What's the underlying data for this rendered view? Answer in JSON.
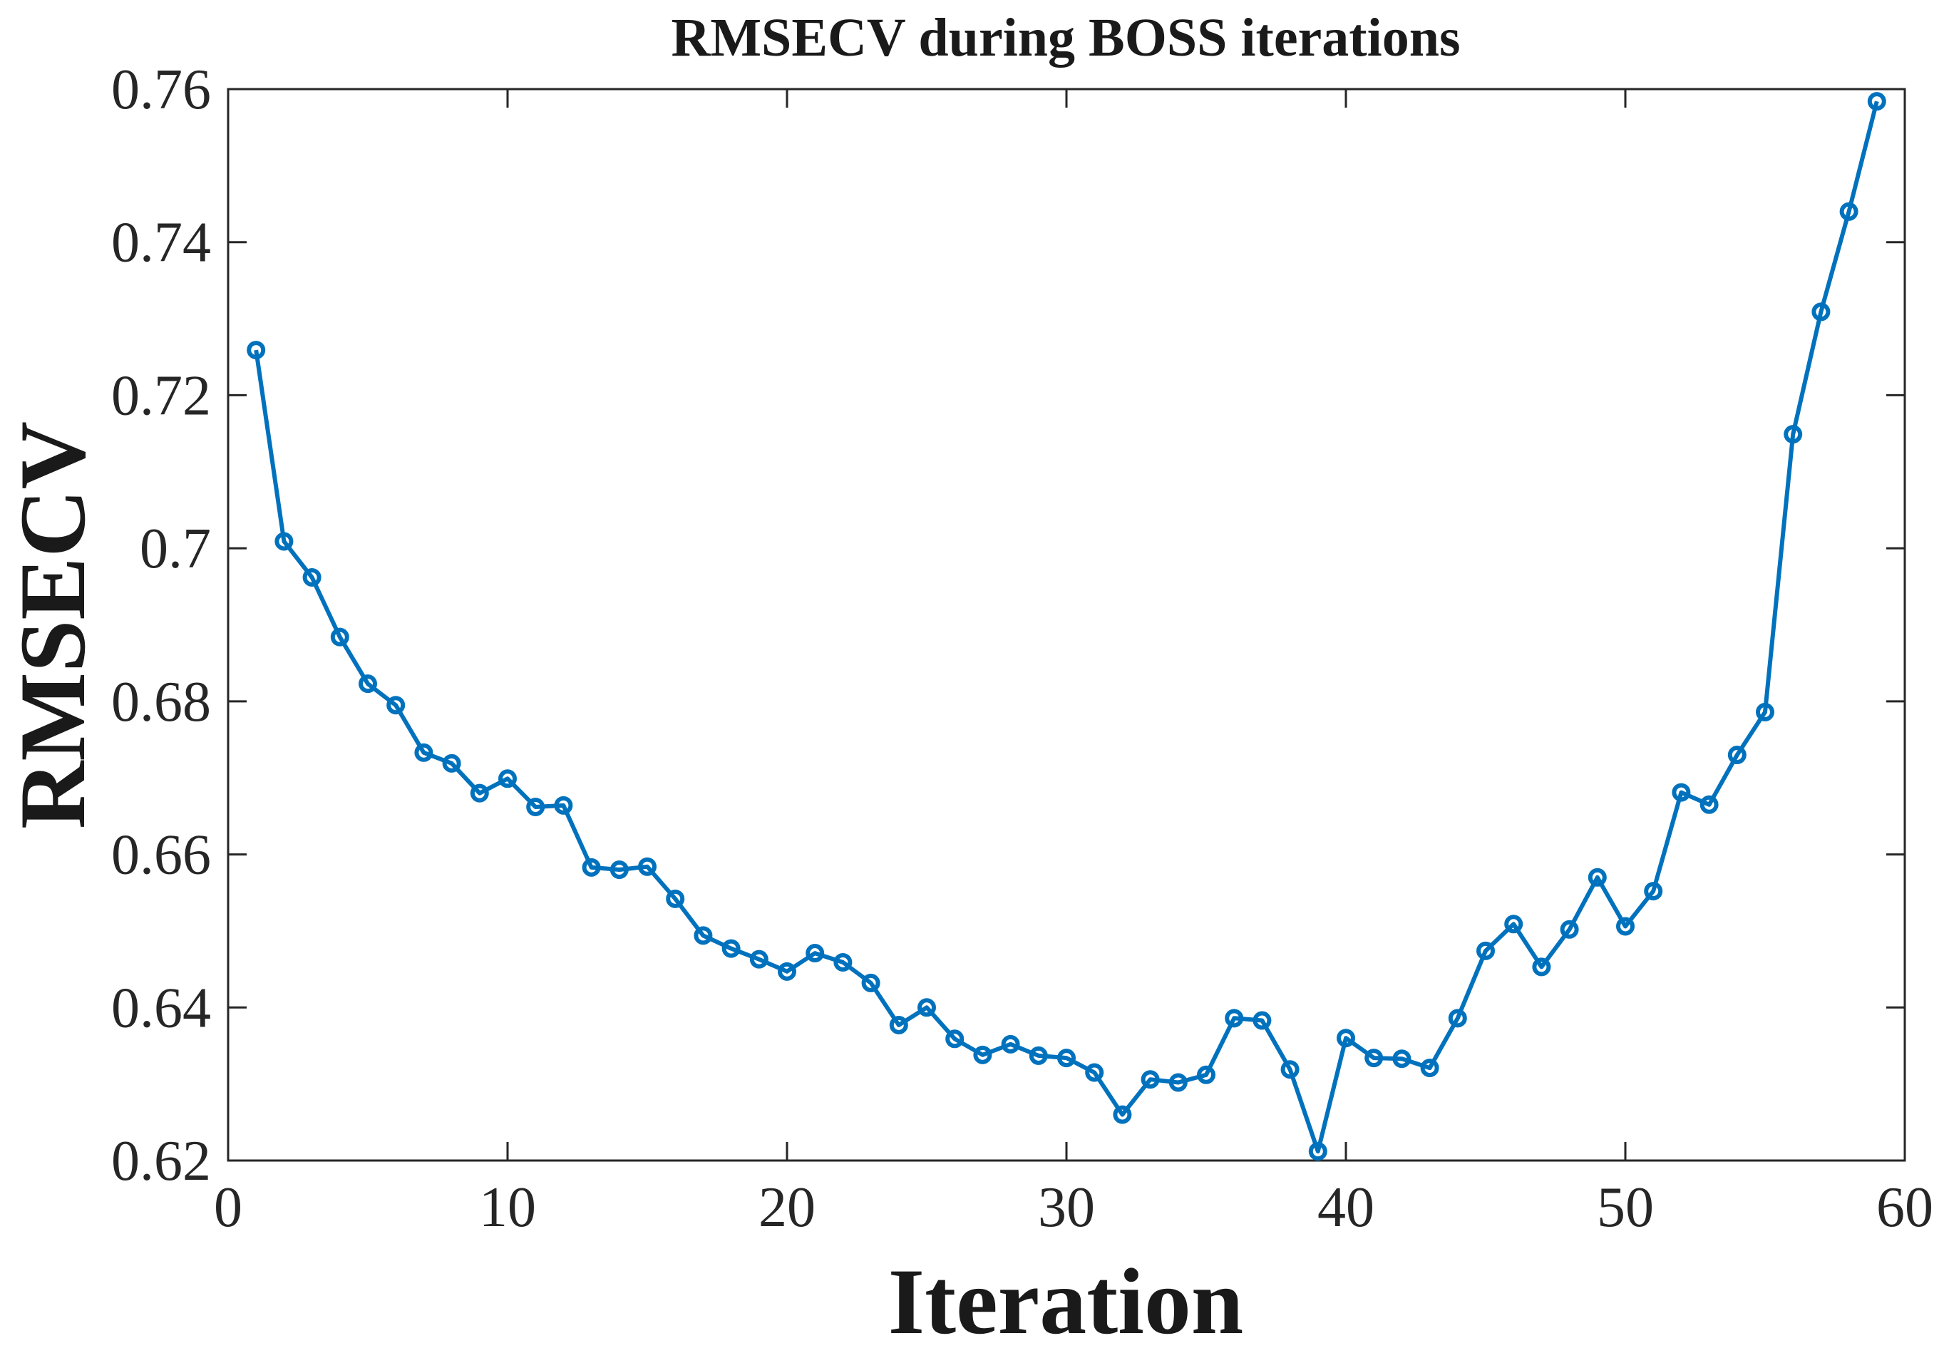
{
  "chart_data": {
    "type": "line",
    "title": "RMSECV during BOSS iterations",
    "xlabel": "Iteration",
    "ylabel": "RMSECV",
    "xlim": [
      0,
      60
    ],
    "ylim": [
      0.62,
      0.76
    ],
    "xticks": [
      0,
      10,
      20,
      30,
      40,
      50,
      60
    ],
    "xtick_labels": [
      "0",
      "10",
      "20",
      "30",
      "40",
      "50",
      "60"
    ],
    "yticks": [
      0.62,
      0.64,
      0.66,
      0.68,
      0.7,
      0.72,
      0.74,
      0.76
    ],
    "ytick_labels": [
      "0.62",
      "0.64",
      "0.66",
      "0.68",
      "0.7",
      "0.72",
      "0.74",
      "0.76"
    ],
    "grid": false,
    "line_color": "#0072BD",
    "marker": "circle",
    "series": [
      {
        "x": [
          1,
          2,
          3,
          4,
          5,
          6,
          7,
          8,
          9,
          10,
          11,
          12,
          13,
          14,
          15,
          16,
          17,
          18,
          19,
          20,
          21,
          22,
          23,
          24,
          25,
          26,
          27,
          28,
          29,
          30,
          31,
          32,
          33,
          34,
          35,
          36,
          37,
          38,
          39,
          40,
          41,
          42,
          43,
          44,
          45,
          46,
          47,
          48,
          49,
          50,
          51,
          52,
          53,
          54,
          55,
          56,
          57,
          58,
          59
        ],
        "y": [
          0.7259,
          0.7009,
          0.6962,
          0.6884,
          0.6823,
          0.6795,
          0.6733,
          0.6719,
          0.668,
          0.6699,
          0.6662,
          0.6664,
          0.6583,
          0.658,
          0.6584,
          0.6542,
          0.6494,
          0.6477,
          0.6463,
          0.6447,
          0.6471,
          0.6459,
          0.6432,
          0.6377,
          0.64,
          0.6359,
          0.6338,
          0.6352,
          0.6337,
          0.6334,
          0.6315,
          0.626,
          0.6306,
          0.6302,
          0.6312,
          0.6386,
          0.6383,
          0.6319,
          0.6212,
          0.636,
          0.6334,
          0.6333,
          0.6321,
          0.6386,
          0.6474,
          0.6509,
          0.6453,
          0.6502,
          0.657,
          0.6506,
          0.6552,
          0.6681,
          0.6665,
          0.673,
          0.6786,
          0.7149,
          0.7309,
          0.744,
          0.7584
        ]
      }
    ]
  }
}
